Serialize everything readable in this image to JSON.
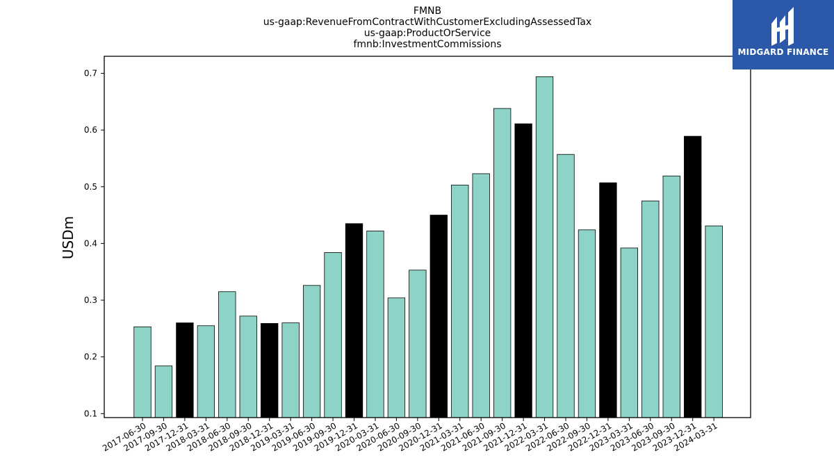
{
  "chart_data": {
    "type": "bar",
    "title_lines": [
      "FMNB",
      "us-gaap:RevenueFromContractWithCustomerExcludingAssessedTax",
      "us-gaap:ProductOrService",
      "fmnb:InvestmentCommissions"
    ],
    "ylabel": "USDm",
    "xlabel": "",
    "ylim": [
      0.093,
      0.73
    ],
    "yticks": [
      "0.1",
      "0.2",
      "0.3",
      "0.4",
      "0.5",
      "0.6",
      "0.7"
    ],
    "grid": false,
    "categories": [
      "2017-06-30",
      "2017-09-30",
      "2017-12-31",
      "2018-03-31",
      "2018-06-30",
      "2018-09-30",
      "2018-12-31",
      "2019-03-31",
      "2019-06-30",
      "2019-09-30",
      "2019-12-31",
      "2020-03-31",
      "2020-06-30",
      "2020-09-30",
      "2020-12-31",
      "2021-03-31",
      "2021-06-30",
      "2021-09-30",
      "2021-12-31",
      "2022-03-31",
      "2022-06-30",
      "2022-09-30",
      "2022-12-31",
      "2023-03-31",
      "2023-06-30",
      "2023-09-30",
      "2023-12-31",
      "2024-03-31"
    ],
    "values": [
      0.253,
      0.184,
      0.26,
      0.255,
      0.315,
      0.272,
      0.259,
      0.26,
      0.326,
      0.384,
      0.435,
      0.422,
      0.304,
      0.353,
      0.45,
      0.503,
      0.523,
      0.638,
      0.611,
      0.694,
      0.557,
      0.424,
      0.507,
      0.392,
      0.475,
      0.519,
      0.589,
      0.431
    ],
    "year_end": [
      false,
      false,
      true,
      false,
      false,
      false,
      true,
      false,
      false,
      false,
      true,
      false,
      false,
      false,
      true,
      false,
      false,
      false,
      true,
      false,
      false,
      false,
      true,
      false,
      false,
      false,
      true,
      false
    ],
    "colors": {
      "bar": "#8dd3c7",
      "bar_year_end": "#000000",
      "edge": "#000000"
    }
  },
  "logo": {
    "text": "MIDGARD FINANCE",
    "background": "#2b58a8",
    "icon": "midgard-logo-icon"
  }
}
